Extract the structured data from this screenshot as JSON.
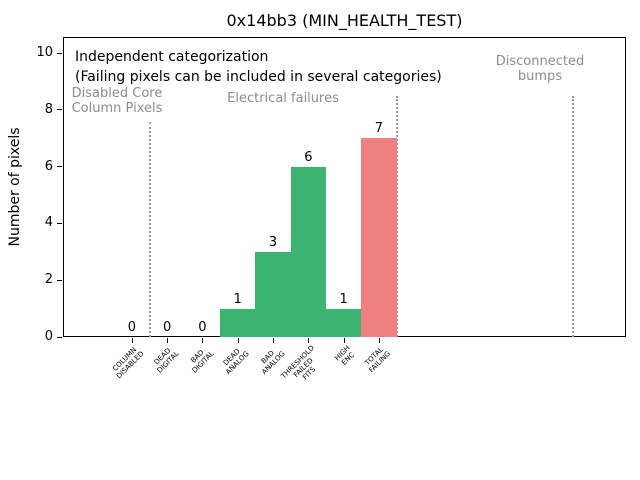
{
  "figure": {
    "title": "0x14bb3 (MIN_HEALTH_TEST)",
    "ylabel": "Number of pixels"
  },
  "annotations": {
    "independent": "Independent categorization",
    "failing_note": "(Failing pixels can be included in several categories)",
    "region_disabled_line1": "Disabled Core",
    "region_disabled_line2": "Column Pixels",
    "region_electrical": "Electrical failures",
    "region_disconnected_line1": "Disconnected",
    "region_disconnected_line2": "bumps"
  },
  "colors": {
    "bar_green": "#3cb371",
    "bar_red": "#f08080",
    "annotation_gray": "#8c8c8c",
    "separator_gray": "#999999"
  },
  "chart_data": {
    "type": "bar",
    "title": "0x14bb3 (MIN_HEALTH_TEST)",
    "xlabel": "",
    "ylabel": "Number of pixels",
    "ylim": [
      0,
      10.6
    ],
    "yticks": [
      0,
      2,
      4,
      6,
      8,
      10
    ],
    "grid": false,
    "legend": null,
    "categories": [
      "COLUMN DISABLED",
      "DEAD DIGITAL",
      "BAD DIGITAL",
      "DEAD ANALOG",
      "BAD ANALOG",
      "THRESHOLD FAILED FITS",
      "HIGH ENC",
      "TOTAL FAILING"
    ],
    "category_lines": [
      [
        "COLUMN",
        "DISABLED"
      ],
      [
        "DEAD",
        "DIGITAL"
      ],
      [
        "BAD",
        "DIGITAL"
      ],
      [
        "DEAD",
        "ANALOG"
      ],
      [
        "BAD",
        "ANALOG"
      ],
      [
        "THRESHOLD",
        "FAILED",
        "FITS"
      ],
      [
        "HIGH",
        "ENC"
      ],
      [
        "TOTAL",
        "FAILING"
      ]
    ],
    "values": [
      0,
      0,
      0,
      1,
      3,
      6,
      1,
      7
    ],
    "value_labels": [
      "0",
      "0",
      "0",
      "1",
      "3",
      "6",
      "1",
      "7"
    ],
    "bar_colors": [
      "#3cb371",
      "#3cb371",
      "#3cb371",
      "#3cb371",
      "#3cb371",
      "#3cb371",
      "#3cb371",
      "#f08080"
    ],
    "region_groups": [
      {
        "label": "Disabled Core Column Pixels",
        "categories": [
          "COLUMN DISABLED"
        ]
      },
      {
        "label": "Electrical failures",
        "categories": [
          "DEAD DIGITAL",
          "BAD DIGITAL",
          "DEAD ANALOG",
          "BAD ANALOG",
          "THRESHOLD FAILED FITS",
          "HIGH ENC",
          "TOTAL FAILING"
        ]
      },
      {
        "label": "Disconnected bumps",
        "categories": []
      }
    ]
  }
}
